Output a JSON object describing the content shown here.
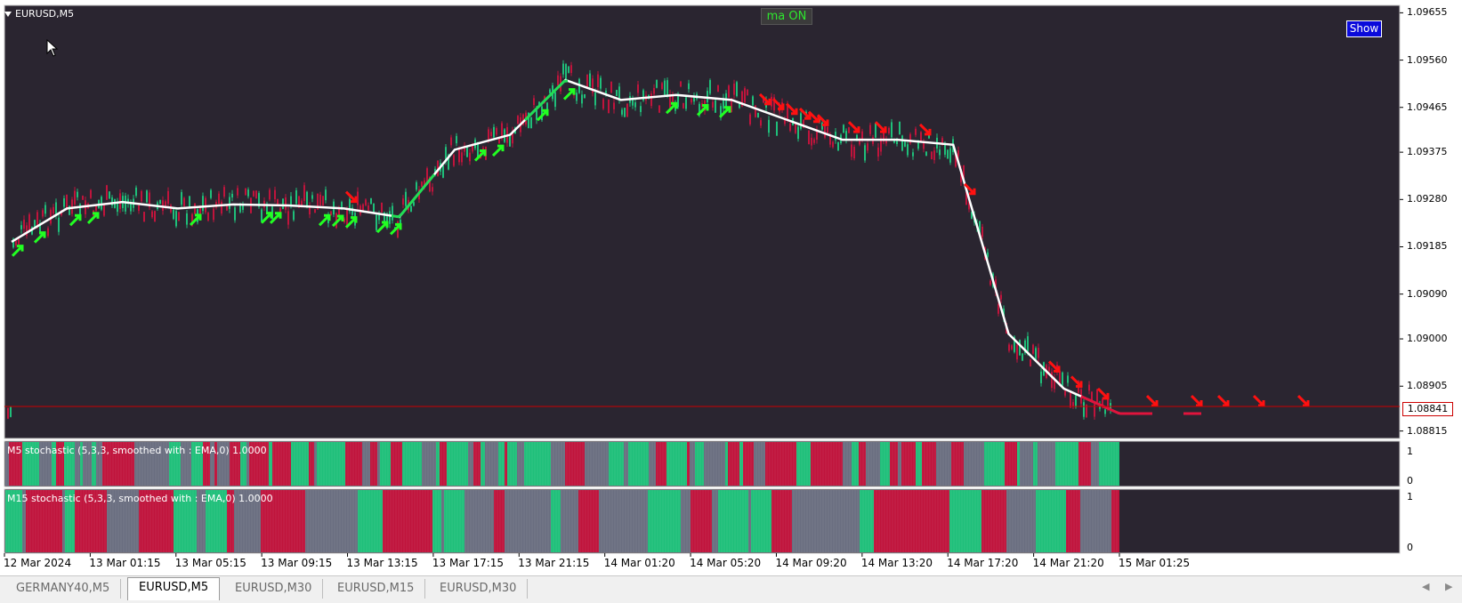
{
  "window": {
    "symbol_title": "EURUSD,M5",
    "ma_badge": "ma ON",
    "show_button": "Show"
  },
  "price_axis": {
    "labels": [
      "1.09655",
      "1.09560",
      "1.09465",
      "1.09375",
      "1.09280",
      "1.09185",
      "1.09090",
      "1.09000",
      "1.08905",
      "1.08815"
    ],
    "current_price": "1.08841",
    "range": [
      1.088,
      1.0967
    ]
  },
  "indicators": [
    {
      "label": "M5 stochastic (5,3,3, smoothed with : EMA,0) 1.0000",
      "axis_top": "1",
      "axis_bottom": "0"
    },
    {
      "label": "M15 stochastic (5,3,3, smoothed with : EMA,0) 1.0000",
      "axis_top": "1",
      "axis_bottom": "0"
    }
  ],
  "time_axis": {
    "labels": [
      "12 Mar 2024",
      "13 Mar 01:15",
      "13 Mar 05:15",
      "13 Mar 09:15",
      "13 Mar 13:15",
      "13 Mar 17:15",
      "13 Mar 21:15",
      "14 Mar 01:20",
      "14 Mar 05:20",
      "14 Mar 09:20",
      "14 Mar 13:20",
      "14 Mar 17:20",
      "14 Mar 21:20",
      "15 Mar 01:25"
    ]
  },
  "tabs": [
    {
      "label": "GERMANY40,M5",
      "active": false
    },
    {
      "label": "EURUSD,M5",
      "active": true
    },
    {
      "label": "EURUSD,M30",
      "active": false
    },
    {
      "label": "EURUSD,M15",
      "active": false
    },
    {
      "label": "EURUSD,M30",
      "active": false
    }
  ],
  "colors": {
    "background": "#2a2530",
    "bull": "#1fbf7a",
    "bear": "#c0143c",
    "neutral": "#6a6e80",
    "ma": "#ffffff",
    "arrow_up": "#22ff22",
    "arrow_down": "#ff1111",
    "price_line": "#cc0000"
  },
  "chart_data": {
    "type": "line",
    "series": [
      {
        "name": "",
        "x": [
          0,
          1,
          2,
          3,
          4,
          5,
          6,
          7,
          8,
          9,
          10,
          11,
          12,
          13,
          14,
          15,
          16,
          17,
          18,
          19,
          20
        ],
        "values": [
          1.09195,
          1.09262,
          1.09275,
          1.09262,
          1.0927,
          1.09268,
          1.09262,
          1.09245,
          1.0938,
          1.0941,
          1.0952,
          1.0948,
          1.0949,
          1.0948,
          1.0944,
          1.094,
          1.094,
          1.0939,
          1.0901,
          1.089,
          1.0885
        ]
      }
    ],
    "ylim": [
      1.088,
      1.0967
    ]
  }
}
